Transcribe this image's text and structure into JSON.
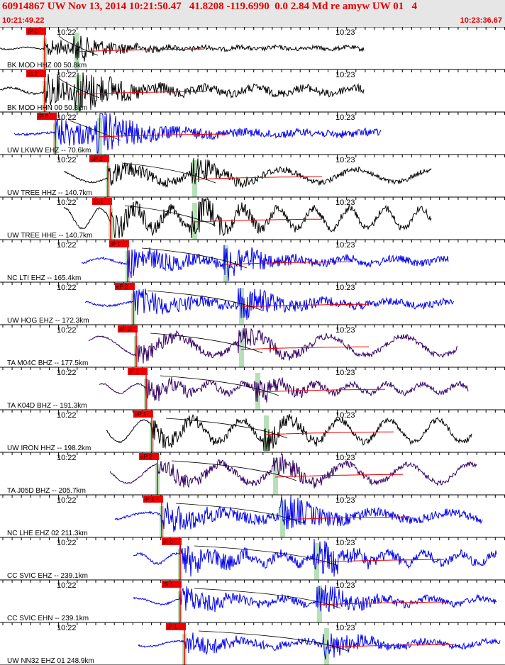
{
  "header": {
    "title": "60914867 UW Nov 13, 2014 10:21:50.47   41.8208 -119.6990  0.0 2.84 Md re amyw UW 01   4",
    "start_time": "10:21:49.22",
    "end_time": "10:23:36.67"
  },
  "chart_data": {
    "type": "line",
    "title": "60914867 UW Nov 13, 2014 10:21:50.47   41.8208 -119.6990  0.0 2.84 Md re amyw UW 01   4",
    "x_range": [
      "10:21:49.22",
      "10:23:36.67"
    ],
    "tick_labels": [
      "10:22",
      "10:23"
    ],
    "colors": {
      "trace_black": "#000000",
      "trace_blue": "#0000ee",
      "trace_purple": "#330066",
      "pick": "#ee0000",
      "s_window": "#b8e0b8",
      "header_text": "#e00000",
      "header_bg": "#e6e6e6"
    },
    "series": [
      {
        "name": "BK MOD HHZ 00 50.8km",
        "color": "#000000",
        "pick_label": "IP 0",
        "t_start": 0.0,
        "t_end": 513,
        "p_time": 63,
        "s_time": 108,
        "amp": 12,
        "noise": 0.08
      },
      {
        "name": "BK MOD HHN 00 50.8km",
        "color": "#000000",
        "pick_label": "iS 2",
        "t_start": 0.0,
        "t_end": 513,
        "p_time": 63,
        "s_time": 110,
        "amp": 22,
        "noise": 0.12
      },
      {
        "name": "UW LKWW EHZ -- 70.6km",
        "color": "#0000ee",
        "pick_label": "IP 0",
        "t_start": 20,
        "t_end": 537,
        "p_time": 78,
        "s_time": 140,
        "amp": 22,
        "noise": 0.05
      },
      {
        "name": "UW TREE HHZ -- 140.7km",
        "color": "#000000",
        "pick_label": "eP 1",
        "t_start": 90,
        "t_end": 608,
        "p_time": 152,
        "s_time": 274,
        "amp": 14,
        "noise": 0.4
      },
      {
        "name": "UW TREE HHE -- 140.7km",
        "color": "#000000",
        "pick_label": "iS 1",
        "t_start": 90,
        "t_end": 608,
        "p_time": 156,
        "s_time": 274,
        "amp": 18,
        "noise": 0.5
      },
      {
        "name": "NC LTI EHZ -- 165.4km",
        "color": "#0000ee",
        "pick_label": "iP 1",
        "t_start": 115,
        "t_end": 632,
        "p_time": 180,
        "s_time": 318,
        "amp": 20,
        "noise": 0.12
      },
      {
        "name": "UW HOG EHZ -- 172.3km",
        "color": "#0000ee",
        "pick_label": "eP 2",
        "t_start": 120,
        "t_end": 640,
        "p_time": 188,
        "s_time": 340,
        "amp": 20,
        "noise": 0.1
      },
      {
        "name": "TA M04C BHZ -- 177.5km",
        "color": "#330066",
        "pick_label": "eP 2",
        "t_start": 125,
        "t_end": 645,
        "p_time": 192,
        "s_time": 340,
        "amp": 14,
        "noise": 0.6
      },
      {
        "name": "TA K04D BHZ -- 191.3km",
        "color": "#330066",
        "pick_label": "iP 1",
        "t_start": 140,
        "t_end": 660,
        "p_time": 206,
        "s_time": 363,
        "amp": 14,
        "noise": 0.3
      },
      {
        "name": "UW IRON HHZ -- 198.2km",
        "color": "#000000",
        "pick_label": "eP 1",
        "t_start": 150,
        "t_end": 665,
        "p_time": 214,
        "s_time": 375,
        "amp": 14,
        "noise": 0.7
      },
      {
        "name": "TA J05D BHZ -- 205.7km",
        "color": "#330066",
        "pick_label": "eP 2",
        "t_start": 155,
        "t_end": 672,
        "p_time": 222,
        "s_time": 388,
        "amp": 14,
        "noise": 0.6
      },
      {
        "name": "NC LHE EHZ 02 211.3km",
        "color": "#0000ee",
        "pick_label": "iP 1",
        "t_start": 162,
        "t_end": 680,
        "p_time": 228,
        "s_time": 398,
        "amp": 22,
        "noise": 0.15
      },
      {
        "name": "CC SVIC EHZ -- 239.1km",
        "color": "#0000ee",
        "pick_label": "iP 0",
        "t_start": 188,
        "t_end": 700,
        "p_time": 254,
        "s_time": 446,
        "amp": 22,
        "noise": 0.2
      },
      {
        "name": "CC SVIC EHN -- 239.1km",
        "color": "#0000ee",
        "pick_label": "iS 1",
        "t_start": 188,
        "t_end": 700,
        "p_time": 254,
        "s_time": 450,
        "amp": 18,
        "noise": 0.15
      },
      {
        "name": "UW NN32 EHZ 01 248.9km",
        "color": "#0000ee",
        "pick_label": "iP 1",
        "t_start": 195,
        "t_end": 705,
        "p_time": 260,
        "s_time": 460,
        "amp": 16,
        "noise": 0.15
      }
    ]
  }
}
